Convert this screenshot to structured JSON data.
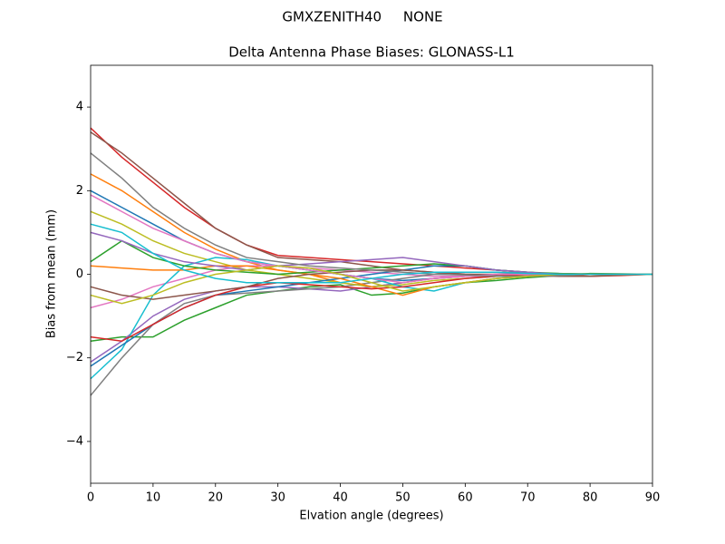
{
  "chart_data": {
    "type": "line",
    "suptitle": "GMXZENITH40     NONE",
    "title": "Delta Antenna Phase Biases: GLONASS-L1",
    "xlabel": "Elvation angle (degrees)",
    "ylabel": "Bias from mean (mm)",
    "x": [
      0,
      5,
      10,
      15,
      20,
      25,
      30,
      35,
      40,
      45,
      50,
      55,
      60,
      65,
      70,
      75,
      80,
      85,
      90
    ],
    "xlim": [
      0,
      90
    ],
    "xticks": [
      0,
      10,
      20,
      30,
      40,
      50,
      60,
      70,
      80,
      90
    ],
    "ylim": [
      -5,
      5
    ],
    "yticks": [
      {
        "value": -4,
        "label": "−4"
      },
      {
        "value": -2,
        "label": "−2"
      },
      0,
      2,
      4
    ],
    "series": [
      {
        "color": "#1f77b4",
        "values": [
          2.0,
          1.6,
          1.2,
          0.8,
          0.5,
          0.3,
          0.2,
          0.1,
          0.0,
          -0.1,
          -0.15,
          -0.1,
          -0.05,
          0,
          0.02,
          0.02,
          0,
          0,
          0
        ]
      },
      {
        "color": "#ff7f0e",
        "values": [
          2.4,
          2.0,
          1.5,
          1.0,
          0.6,
          0.3,
          0.1,
          0.0,
          -0.2,
          -0.3,
          -0.2,
          -0.1,
          -0.05,
          0,
          0,
          0.01,
          0,
          0,
          0
        ]
      },
      {
        "color": "#2ca02c",
        "values": [
          -1.6,
          -1.5,
          -1.5,
          -1.1,
          -0.8,
          -0.5,
          -0.4,
          -0.3,
          -0.25,
          -0.5,
          -0.45,
          -0.3,
          -0.2,
          -0.15,
          -0.08,
          -0.03,
          0.02,
          0.01,
          0
        ]
      },
      {
        "color": "#d62728",
        "values": [
          3.5,
          2.8,
          2.2,
          1.6,
          1.1,
          0.7,
          0.45,
          0.4,
          0.35,
          0.3,
          0.25,
          0.2,
          0.15,
          0.1,
          0.05,
          0,
          -0.05,
          -0.03,
          0
        ]
      },
      {
        "color": "#9467bd",
        "values": [
          -2.1,
          -1.6,
          -1.0,
          -0.6,
          -0.4,
          -0.3,
          -0.3,
          -0.35,
          -0.4,
          -0.3,
          -0.2,
          -0.1,
          -0.05,
          0,
          0,
          0,
          0,
          0,
          0
        ]
      },
      {
        "color": "#8c564b",
        "values": [
          3.4,
          2.9,
          2.3,
          1.7,
          1.1,
          0.7,
          0.4,
          0.35,
          0.3,
          0.2,
          0.1,
          0.05,
          0,
          -0.02,
          -0.03,
          -0.05,
          -0.05,
          -0.02,
          0
        ]
      },
      {
        "color": "#e377c2",
        "values": [
          -0.8,
          -0.6,
          -0.3,
          -0.1,
          0.1,
          0.2,
          0.2,
          0.15,
          0.1,
          0.05,
          0.0,
          -0.05,
          -0.05,
          -0.05,
          -0.02,
          0,
          0,
          0,
          0
        ]
      },
      {
        "color": "#7f7f7f",
        "values": [
          -2.9,
          -2.0,
          -1.2,
          -0.7,
          -0.5,
          -0.45,
          -0.4,
          -0.35,
          -0.3,
          -0.2,
          -0.1,
          0,
          0.05,
          0.05,
          0.03,
          0,
          0,
          0,
          0
        ]
      },
      {
        "color": "#bcbd22",
        "values": [
          1.5,
          1.2,
          0.8,
          0.5,
          0.3,
          0.1,
          0.0,
          -0.1,
          -0.2,
          -0.3,
          -0.25,
          -0.15,
          -0.1,
          -0.05,
          0,
          0,
          0,
          0,
          0
        ]
      },
      {
        "color": "#17becf",
        "values": [
          -2.5,
          -1.8,
          -0.5,
          0.2,
          0.4,
          0.35,
          0.2,
          0.1,
          0.0,
          -0.1,
          -0.3,
          -0.4,
          -0.2,
          -0.1,
          -0.05,
          0,
          0,
          0,
          0
        ]
      },
      {
        "color": "#1f77b4",
        "values": [
          -2.2,
          -1.7,
          -1.2,
          -0.8,
          -0.5,
          -0.4,
          -0.3,
          -0.2,
          -0.1,
          0.0,
          0.1,
          0.2,
          0.2,
          0.1,
          0.05,
          0,
          0,
          0,
          0
        ]
      },
      {
        "color": "#ff7f0e",
        "values": [
          0.2,
          0.15,
          0.1,
          0.1,
          0.2,
          0.2,
          0.1,
          0.0,
          -0.1,
          -0.3,
          -0.5,
          -0.3,
          -0.2,
          -0.1,
          -0.05,
          0,
          0,
          0,
          0
        ]
      },
      {
        "color": "#2ca02c",
        "values": [
          0.3,
          0.8,
          0.4,
          0.2,
          0.1,
          0.05,
          0.0,
          0.05,
          0.1,
          0.15,
          0.2,
          0.25,
          0.2,
          0.1,
          0.05,
          0.02,
          0.01,
          0,
          0
        ]
      },
      {
        "color": "#d62728",
        "values": [
          -1.5,
          -1.6,
          -1.2,
          -0.8,
          -0.5,
          -0.3,
          -0.2,
          -0.25,
          -0.3,
          -0.35,
          -0.3,
          -0.2,
          -0.1,
          -0.05,
          0,
          0,
          0,
          0,
          0
        ]
      },
      {
        "color": "#9467bd",
        "values": [
          1.0,
          0.8,
          0.5,
          0.3,
          0.2,
          0.1,
          0.2,
          0.25,
          0.3,
          0.35,
          0.4,
          0.3,
          0.2,
          0.1,
          0.05,
          0,
          0,
          0,
          0
        ]
      },
      {
        "color": "#8c564b",
        "values": [
          -0.3,
          -0.5,
          -0.6,
          -0.5,
          -0.4,
          -0.3,
          -0.1,
          0.0,
          0.05,
          0.1,
          0.1,
          0.05,
          0,
          0,
          0,
          0,
          0,
          0,
          0
        ]
      },
      {
        "color": "#e377c2",
        "values": [
          1.9,
          1.5,
          1.1,
          0.8,
          0.5,
          0.3,
          0.2,
          0.1,
          0.0,
          -0.1,
          -0.2,
          -0.1,
          -0.05,
          0,
          0,
          0,
          0,
          0,
          0
        ]
      },
      {
        "color": "#7f7f7f",
        "values": [
          2.9,
          2.3,
          1.6,
          1.1,
          0.7,
          0.4,
          0.3,
          0.2,
          0.15,
          0.1,
          0.05,
          0,
          -0.02,
          -0.05,
          -0.05,
          -0.03,
          0,
          0,
          0
        ]
      },
      {
        "color": "#bcbd22",
        "values": [
          -0.5,
          -0.7,
          -0.5,
          -0.2,
          0.0,
          0.1,
          0.2,
          0.15,
          0.0,
          -0.2,
          -0.4,
          -0.3,
          -0.2,
          -0.1,
          -0.05,
          0,
          0,
          0,
          0
        ]
      },
      {
        "color": "#17becf",
        "values": [
          1.2,
          1.0,
          0.5,
          0.1,
          -0.1,
          -0.2,
          -0.2,
          -0.2,
          -0.2,
          -0.1,
          0.0,
          0.05,
          0.05,
          0.05,
          0.02,
          0,
          0,
          0,
          0
        ]
      }
    ]
  }
}
